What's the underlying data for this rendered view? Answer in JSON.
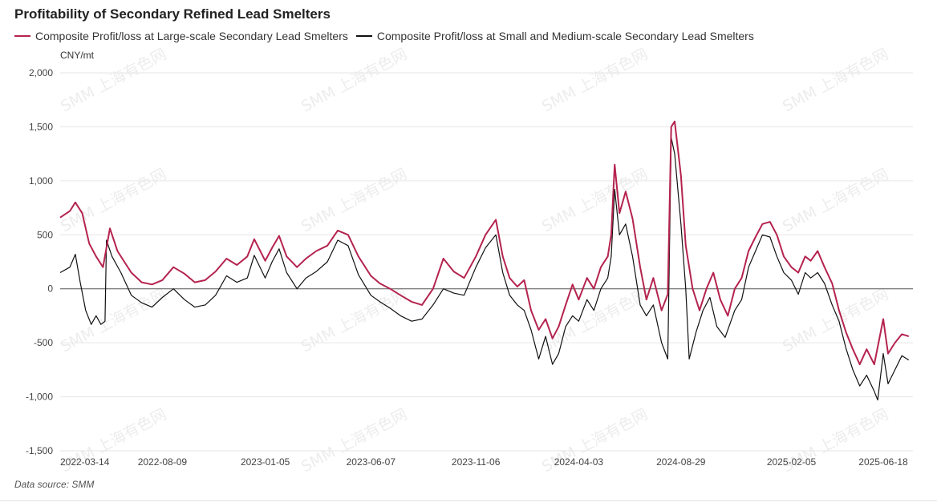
{
  "chart_data": {
    "type": "line",
    "title": "Profitability of Secondary Refined Lead Smelters",
    "unit_label": "CNY/mt",
    "source_label": "Data source:  SMM",
    "watermark": "SMM 上海有色网",
    "ylim": [
      -1500,
      2000
    ],
    "y_ticks": [
      2000,
      1500,
      1000,
      500,
      0,
      -500,
      -1000,
      -1500
    ],
    "y_tick_labels": [
      "2,000",
      "1,500",
      "1,000",
      "500",
      "0",
      "-500",
      "-1,000",
      "-1,500"
    ],
    "x_range": [
      "2022-03-14",
      "2025-07-31"
    ],
    "x_tick_labels": [
      "2022-03-14",
      "2022-08-09",
      "2023-01-05",
      "2023-06-07",
      "2023-11-06",
      "2024-04-03",
      "2024-08-29",
      "2025-02-05",
      "2025-06-18"
    ],
    "grid": "horizontal",
    "legend_position": "top-left",
    "series": [
      {
        "name": "Composite Profit/loss at Large-scale Secondary Lead Smelters",
        "color": "#B5234F",
        "points": [
          [
            "2022-03-14",
            660
          ],
          [
            "2022-03-28",
            720
          ],
          [
            "2022-04-05",
            800
          ],
          [
            "2022-04-15",
            700
          ],
          [
            "2022-04-25",
            420
          ],
          [
            "2022-05-05",
            300
          ],
          [
            "2022-05-15",
            200
          ],
          [
            "2022-05-25",
            560
          ],
          [
            "2022-06-05",
            350
          ],
          [
            "2022-06-15",
            250
          ],
          [
            "2022-06-25",
            150
          ],
          [
            "2022-07-10",
            60
          ],
          [
            "2022-07-25",
            40
          ],
          [
            "2022-08-09",
            80
          ],
          [
            "2022-08-25",
            200
          ],
          [
            "2022-09-10",
            140
          ],
          [
            "2022-09-25",
            60
          ],
          [
            "2022-10-10",
            80
          ],
          [
            "2022-10-25",
            160
          ],
          [
            "2022-11-10",
            280
          ],
          [
            "2022-11-25",
            220
          ],
          [
            "2022-12-10",
            300
          ],
          [
            "2022-12-20",
            460
          ],
          [
            "2023-01-05",
            260
          ],
          [
            "2023-01-15",
            380
          ],
          [
            "2023-01-25",
            490
          ],
          [
            "2023-02-05",
            300
          ],
          [
            "2023-02-20",
            200
          ],
          [
            "2023-03-05",
            280
          ],
          [
            "2023-03-20",
            350
          ],
          [
            "2023-04-05",
            400
          ],
          [
            "2023-04-20",
            540
          ],
          [
            "2023-05-05",
            500
          ],
          [
            "2023-05-20",
            300
          ],
          [
            "2023-06-07",
            120
          ],
          [
            "2023-06-20",
            50
          ],
          [
            "2023-07-05",
            0
          ],
          [
            "2023-07-20",
            -60
          ],
          [
            "2023-08-05",
            -120
          ],
          [
            "2023-08-20",
            -150
          ],
          [
            "2023-09-05",
            0
          ],
          [
            "2023-09-20",
            280
          ],
          [
            "2023-10-05",
            160
          ],
          [
            "2023-10-20",
            100
          ],
          [
            "2023-11-06",
            300
          ],
          [
            "2023-11-20",
            500
          ],
          [
            "2023-12-05",
            640
          ],
          [
            "2023-12-15",
            300
          ],
          [
            "2023-12-25",
            100
          ],
          [
            "2024-01-05",
            20
          ],
          [
            "2024-01-15",
            80
          ],
          [
            "2024-01-25",
            -200
          ],
          [
            "2024-02-05",
            -380
          ],
          [
            "2024-02-15",
            -280
          ],
          [
            "2024-02-25",
            -460
          ],
          [
            "2024-03-05",
            -350
          ],
          [
            "2024-03-15",
            -150
          ],
          [
            "2024-03-25",
            40
          ],
          [
            "2024-04-03",
            -100
          ],
          [
            "2024-04-15",
            100
          ],
          [
            "2024-04-25",
            0
          ],
          [
            "2024-05-05",
            200
          ],
          [
            "2024-05-15",
            300
          ],
          [
            "2024-05-20",
            500
          ],
          [
            "2024-05-25",
            1150
          ],
          [
            "2024-06-01",
            700
          ],
          [
            "2024-06-10",
            900
          ],
          [
            "2024-06-20",
            650
          ],
          [
            "2024-07-01",
            200
          ],
          [
            "2024-07-10",
            -100
          ],
          [
            "2024-07-20",
            100
          ],
          [
            "2024-08-01",
            -200
          ],
          [
            "2024-08-10",
            -50
          ],
          [
            "2024-08-15",
            1500
          ],
          [
            "2024-08-20",
            1550
          ],
          [
            "2024-08-29",
            1050
          ],
          [
            "2024-09-05",
            400
          ],
          [
            "2024-09-15",
            0
          ],
          [
            "2024-09-25",
            -200
          ],
          [
            "2024-10-05",
            0
          ],
          [
            "2024-10-15",
            150
          ],
          [
            "2024-10-25",
            -100
          ],
          [
            "2024-11-05",
            -250
          ],
          [
            "2024-11-15",
            0
          ],
          [
            "2024-11-25",
            100
          ],
          [
            "2024-12-05",
            350
          ],
          [
            "2024-12-15",
            480
          ],
          [
            "2024-12-25",
            600
          ],
          [
            "2025-01-05",
            620
          ],
          [
            "2025-01-15",
            500
          ],
          [
            "2025-01-25",
            300
          ],
          [
            "2025-02-05",
            200
          ],
          [
            "2025-02-15",
            150
          ],
          [
            "2025-02-25",
            300
          ],
          [
            "2025-03-05",
            260
          ],
          [
            "2025-03-15",
            350
          ],
          [
            "2025-03-25",
            200
          ],
          [
            "2025-04-05",
            50
          ],
          [
            "2025-04-15",
            -200
          ],
          [
            "2025-04-25",
            -400
          ],
          [
            "2025-05-05",
            -560
          ],
          [
            "2025-05-15",
            -700
          ],
          [
            "2025-05-25",
            -560
          ],
          [
            "2025-06-05",
            -700
          ],
          [
            "2025-06-18",
            -280
          ],
          [
            "2025-06-25",
            -600
          ],
          [
            "2025-07-05",
            -500
          ],
          [
            "2025-07-15",
            -420
          ],
          [
            "2025-07-25",
            -440
          ]
        ]
      },
      {
        "name": "Composite Profit/loss at Small and Medium-scale Secondary Lead Smelters",
        "color": "#111111",
        "points": [
          [
            "2022-03-14",
            150
          ],
          [
            "2022-03-28",
            200
          ],
          [
            "2022-04-05",
            320
          ],
          [
            "2022-04-12",
            60
          ],
          [
            "2022-04-20",
            -200
          ],
          [
            "2022-04-28",
            -330
          ],
          [
            "2022-05-05",
            -250
          ],
          [
            "2022-05-12",
            -330
          ],
          [
            "2022-05-18",
            -300
          ],
          [
            "2022-05-20",
            450
          ],
          [
            "2022-05-28",
            300
          ],
          [
            "2022-06-10",
            150
          ],
          [
            "2022-06-25",
            -60
          ],
          [
            "2022-07-10",
            -130
          ],
          [
            "2022-07-25",
            -170
          ],
          [
            "2022-08-09",
            -80
          ],
          [
            "2022-08-25",
            0
          ],
          [
            "2022-09-10",
            -100
          ],
          [
            "2022-09-25",
            -170
          ],
          [
            "2022-10-10",
            -150
          ],
          [
            "2022-10-25",
            -60
          ],
          [
            "2022-11-10",
            120
          ],
          [
            "2022-11-25",
            60
          ],
          [
            "2022-12-10",
            100
          ],
          [
            "2022-12-20",
            310
          ],
          [
            "2023-01-05",
            100
          ],
          [
            "2023-01-15",
            250
          ],
          [
            "2023-01-25",
            370
          ],
          [
            "2023-02-05",
            150
          ],
          [
            "2023-02-20",
            0
          ],
          [
            "2023-03-05",
            100
          ],
          [
            "2023-03-20",
            160
          ],
          [
            "2023-04-05",
            250
          ],
          [
            "2023-04-20",
            450
          ],
          [
            "2023-05-05",
            400
          ],
          [
            "2023-05-20",
            130
          ],
          [
            "2023-06-07",
            -60
          ],
          [
            "2023-06-20",
            -120
          ],
          [
            "2023-07-05",
            -180
          ],
          [
            "2023-07-20",
            -250
          ],
          [
            "2023-08-05",
            -300
          ],
          [
            "2023-08-20",
            -280
          ],
          [
            "2023-09-05",
            -150
          ],
          [
            "2023-09-20",
            0
          ],
          [
            "2023-10-05",
            -40
          ],
          [
            "2023-10-20",
            -60
          ],
          [
            "2023-11-06",
            200
          ],
          [
            "2023-11-20",
            380
          ],
          [
            "2023-12-05",
            500
          ],
          [
            "2023-12-15",
            150
          ],
          [
            "2023-12-25",
            -60
          ],
          [
            "2024-01-05",
            -150
          ],
          [
            "2024-01-15",
            -200
          ],
          [
            "2024-01-25",
            -380
          ],
          [
            "2024-02-05",
            -650
          ],
          [
            "2024-02-15",
            -440
          ],
          [
            "2024-02-25",
            -700
          ],
          [
            "2024-03-05",
            -600
          ],
          [
            "2024-03-15",
            -350
          ],
          [
            "2024-03-25",
            -250
          ],
          [
            "2024-04-03",
            -300
          ],
          [
            "2024-04-15",
            -100
          ],
          [
            "2024-04-25",
            -200
          ],
          [
            "2024-05-05",
            0
          ],
          [
            "2024-05-15",
            100
          ],
          [
            "2024-05-20",
            300
          ],
          [
            "2024-05-25",
            920
          ],
          [
            "2024-06-01",
            500
          ],
          [
            "2024-06-10",
            600
          ],
          [
            "2024-06-20",
            300
          ],
          [
            "2024-07-01",
            -150
          ],
          [
            "2024-07-10",
            -250
          ],
          [
            "2024-07-20",
            -150
          ],
          [
            "2024-08-01",
            -500
          ],
          [
            "2024-08-10",
            -650
          ],
          [
            "2024-08-15",
            1400
          ],
          [
            "2024-08-20",
            1250
          ],
          [
            "2024-08-29",
            600
          ],
          [
            "2024-09-05",
            0
          ],
          [
            "2024-09-10",
            -650
          ],
          [
            "2024-09-20",
            -400
          ],
          [
            "2024-09-30",
            -200
          ],
          [
            "2024-10-10",
            -80
          ],
          [
            "2024-10-20",
            -350
          ],
          [
            "2024-11-01",
            -450
          ],
          [
            "2024-11-15",
            -200
          ],
          [
            "2024-11-25",
            -100
          ],
          [
            "2024-12-05",
            200
          ],
          [
            "2024-12-15",
            350
          ],
          [
            "2024-12-25",
            500
          ],
          [
            "2025-01-05",
            480
          ],
          [
            "2025-01-15",
            300
          ],
          [
            "2025-01-25",
            150
          ],
          [
            "2025-02-05",
            80
          ],
          [
            "2025-02-15",
            -50
          ],
          [
            "2025-02-25",
            150
          ],
          [
            "2025-03-05",
            100
          ],
          [
            "2025-03-15",
            150
          ],
          [
            "2025-03-25",
            50
          ],
          [
            "2025-04-05",
            -150
          ],
          [
            "2025-04-15",
            -300
          ],
          [
            "2025-04-25",
            -550
          ],
          [
            "2025-05-05",
            -750
          ],
          [
            "2025-05-15",
            -900
          ],
          [
            "2025-05-25",
            -800
          ],
          [
            "2025-06-05",
            -950
          ],
          [
            "2025-06-10",
            -1030
          ],
          [
            "2025-06-18",
            -600
          ],
          [
            "2025-06-25",
            -880
          ],
          [
            "2025-07-05",
            -750
          ],
          [
            "2025-07-15",
            -620
          ],
          [
            "2025-07-25",
            -660
          ]
        ]
      }
    ]
  }
}
